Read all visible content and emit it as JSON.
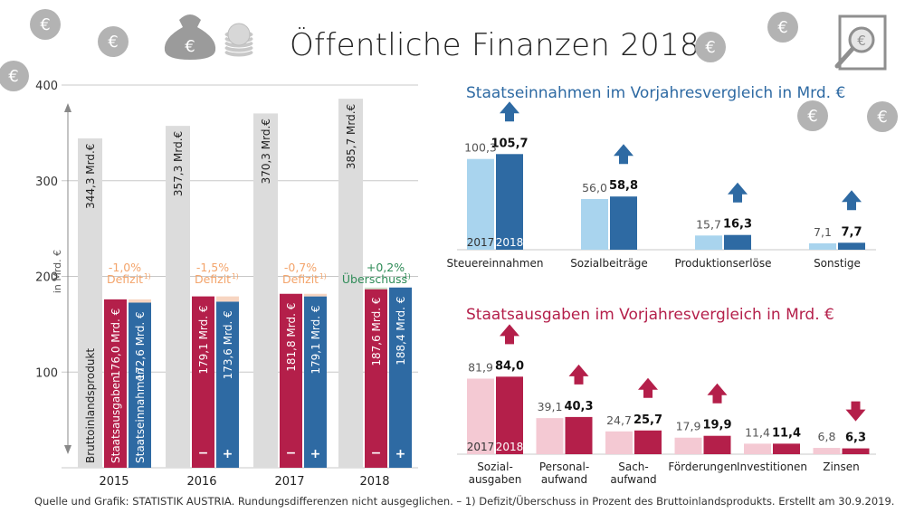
{
  "title": "Öffentliche Finanzen 2018",
  "source": "Quelle und Grafik: STATISTIK AUSTRIA. Rundungsdifferenzen nicht ausgeglichen. – 1) Defizit/Überschuss in Prozent des Bruttoinlandsprodukts. Erstellt am 30.9.2019.",
  "colors": {
    "bip": "#dcdcdc",
    "expense": "#b41f4a",
    "revenue": "#2e6aa3",
    "rev_light": "#a9d4ee",
    "exp_light": "#f4c9d3",
    "deficit": "#f3a46b",
    "surplus": "#2e8b57"
  },
  "icons": [
    "euro-coin-icon",
    "money-bag-icon",
    "coin-stack-icon",
    "magnifier-euro-icon"
  ],
  "chart_data": [
    {
      "type": "bar",
      "title": "",
      "ylabel": "in Mrd. €",
      "ylim": [
        0,
        400
      ],
      "yticks": [
        100,
        200,
        300,
        400
      ],
      "categories": [
        "2015",
        "2016",
        "2017",
        "2018"
      ],
      "series": [
        {
          "name": "Bruttoinlandsprodukt",
          "values": [
            344.3,
            357.3,
            370.3,
            385.7
          ],
          "labels": [
            "344,3 Mrd.€",
            "357,3 Mrd.€",
            "370,3 Mrd.€",
            "385,7 Mrd.€"
          ]
        },
        {
          "name": "Staatsausgaben",
          "values": [
            176.0,
            179.1,
            181.8,
            187.6
          ],
          "labels": [
            "176,0 Mrd. €",
            "179,1 Mrd. €",
            "181,8 Mrd. €",
            "187,6 Mrd. €"
          ]
        },
        {
          "name": "Staatseinnahmen",
          "values": [
            172.6,
            173.6,
            179.1,
            188.4
          ],
          "labels": [
            "172,6 Mrd. €",
            "173,6 Mrd. €",
            "179,1 Mrd. €",
            "188,4 Mrd. €"
          ]
        }
      ],
      "balance": [
        {
          "pct": "-1,0%",
          "word": "Defizit",
          "sup": "1)"
        },
        {
          "pct": "-1,5%",
          "word": "Defizit",
          "sup": "1)"
        },
        {
          "pct": "-0,7%",
          "word": "Defizit",
          "sup": "1)"
        },
        {
          "pct": "+0,2%",
          "word": "Überschuss",
          "sup": "1)"
        }
      ],
      "minus_signs": [
        "",
        "−",
        "−",
        "−"
      ],
      "plus_signs": [
        "",
        "+",
        "+",
        "+"
      ]
    },
    {
      "type": "bar",
      "title": "Staatseinnahmen im Vorjahresvergleich in Mrd. €",
      "categories": [
        "Steuereinnahmen",
        "Sozialbeiträge",
        "Produktionserlöse",
        "Sonstige"
      ],
      "series": [
        {
          "name": "2017",
          "values": [
            100.3,
            56.0,
            15.7,
            7.1
          ],
          "labels": [
            "100,3",
            "56,0",
            "15,7",
            "7,1"
          ]
        },
        {
          "name": "2018",
          "values": [
            105.7,
            58.8,
            16.3,
            7.7
          ],
          "labels": [
            "105,7",
            "58,8",
            "16,3",
            "7,7"
          ]
        }
      ],
      "trend": [
        "up",
        "up",
        "up",
        "up"
      ]
    },
    {
      "type": "bar",
      "title": "Staatsausgaben im Vorjahresvergleich in Mrd. €",
      "categories": [
        [
          "Sozial-",
          "ausgaben"
        ],
        [
          "Personal-",
          "aufwand"
        ],
        [
          "Sach-",
          "aufwand"
        ],
        [
          "Förderungen"
        ],
        [
          "Investitionen"
        ],
        [
          "Zinsen"
        ]
      ],
      "series": [
        {
          "name": "2017",
          "values": [
            81.9,
            39.1,
            24.7,
            17.9,
            11.4,
            6.8
          ],
          "labels": [
            "81,9",
            "39,1",
            "24,7",
            "17,9",
            "11,4",
            "6,8"
          ]
        },
        {
          "name": "2018",
          "values": [
            84.0,
            40.3,
            25.7,
            19.9,
            11.4,
            6.3
          ],
          "labels": [
            "84,0",
            "40,3",
            "25,7",
            "19,9",
            "11,4",
            "6,3"
          ]
        }
      ],
      "trend": [
        "up",
        "up",
        "up",
        "up",
        "none",
        "down"
      ]
    }
  ]
}
